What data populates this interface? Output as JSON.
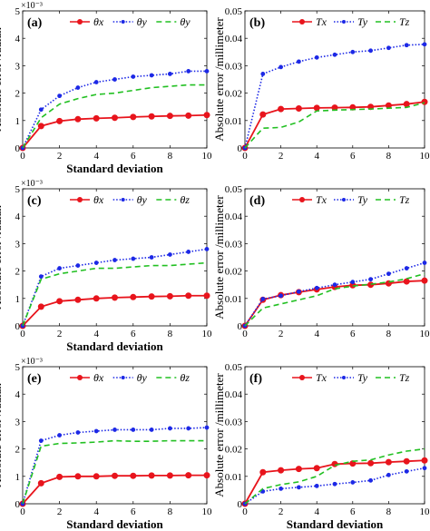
{
  "chart_data": [
    {
      "panel": "(a)",
      "type": "line",
      "xlabel": "Standard deviation",
      "ylabel": "Absolute error /radian",
      "multiplier": "×10⁻³",
      "xlim": [
        0,
        10
      ],
      "ylim": [
        0,
        0.005
      ],
      "xticks": [
        "0",
        "2",
        "4",
        "6",
        "8",
        "10"
      ],
      "yticks": [
        "0",
        "1",
        "2",
        "3",
        "4",
        "5"
      ],
      "x": [
        0,
        1,
        2,
        3,
        4,
        5,
        6,
        7,
        8,
        9,
        10
      ],
      "series": [
        {
          "name": "θx",
          "sub": "x",
          "color": "#e8141c",
          "style": "solid",
          "marker": "circle-large",
          "values": [
            0,
            0.0008,
            0.00098,
            0.00105,
            0.00108,
            0.0011,
            0.00113,
            0.00115,
            0.00117,
            0.00118,
            0.0012
          ]
        },
        {
          "name": "θy",
          "sub": "y",
          "color": "#1c28e6",
          "style": "dotted",
          "marker": "dot",
          "values": [
            0,
            0.0014,
            0.0019,
            0.0022,
            0.0024,
            0.0025,
            0.0026,
            0.00265,
            0.0027,
            0.0028,
            0.0028
          ]
        },
        {
          "name": "θy",
          "sub": "y",
          "color": "#22c022",
          "style": "dashed",
          "marker": "none",
          "values": [
            0,
            0.0011,
            0.0016,
            0.0018,
            0.00195,
            0.002,
            0.0021,
            0.0022,
            0.00225,
            0.0023,
            0.0023
          ]
        }
      ]
    },
    {
      "panel": "(b)",
      "type": "line",
      "xlabel": "",
      "ylabel": "Absolute error /millimeter",
      "multiplier": "",
      "xlim": [
        0,
        10
      ],
      "ylim": [
        0,
        0.05
      ],
      "xticks": [
        "0",
        "2",
        "4",
        "6",
        "8",
        "10"
      ],
      "yticks": [
        "0",
        "0.01",
        "0.02",
        "0.03",
        "0.04",
        "0.05"
      ],
      "x": [
        0,
        1,
        2,
        3,
        4,
        5,
        6,
        7,
        8,
        9,
        10
      ],
      "series": [
        {
          "name": "Tx",
          "sub": "x",
          "color": "#e8141c",
          "style": "solid",
          "marker": "circle-large",
          "values": [
            0,
            0.0122,
            0.0142,
            0.0144,
            0.0146,
            0.0147,
            0.0148,
            0.015,
            0.0155,
            0.016,
            0.0168
          ]
        },
        {
          "name": "Ty",
          "sub": "y",
          "color": "#1c28e6",
          "style": "dotted",
          "marker": "dot",
          "values": [
            0,
            0.027,
            0.0295,
            0.0315,
            0.033,
            0.034,
            0.035,
            0.0355,
            0.0365,
            0.0375,
            0.0378
          ]
        },
        {
          "name": "Tz",
          "sub": "z",
          "color": "#22c022",
          "style": "dashed",
          "marker": "none",
          "values": [
            0,
            0.0072,
            0.0075,
            0.0095,
            0.0135,
            0.0138,
            0.014,
            0.0142,
            0.0145,
            0.0148,
            0.0165
          ]
        }
      ]
    },
    {
      "panel": "(c)",
      "type": "line",
      "xlabel": "Standard deviation",
      "ylabel": "Absolute error /radian",
      "multiplier": "×10⁻³",
      "xlim": [
        0,
        10
      ],
      "ylim": [
        0,
        0.005
      ],
      "xticks": [
        "0",
        "2",
        "4",
        "6",
        "8",
        "10"
      ],
      "yticks": [
        "0",
        "1",
        "2",
        "3",
        "4",
        "5"
      ],
      "x": [
        0,
        1,
        2,
        3,
        4,
        5,
        6,
        7,
        8,
        9,
        10
      ],
      "series": [
        {
          "name": "θx",
          "sub": "x",
          "color": "#e8141c",
          "style": "solid",
          "marker": "circle-large",
          "values": [
            0,
            0.0007,
            0.0009,
            0.00095,
            0.001,
            0.00103,
            0.00105,
            0.00107,
            0.00108,
            0.0011,
            0.0011
          ]
        },
        {
          "name": "θy",
          "sub": "y",
          "color": "#1c28e6",
          "style": "dotted",
          "marker": "dot",
          "values": [
            0,
            0.0018,
            0.0021,
            0.0022,
            0.0023,
            0.0024,
            0.00245,
            0.0025,
            0.0026,
            0.0027,
            0.0028
          ]
        },
        {
          "name": "θz",
          "sub": "z",
          "color": "#22c022",
          "style": "dashed",
          "marker": "none",
          "values": [
            0,
            0.0017,
            0.0019,
            0.002,
            0.0021,
            0.0021,
            0.00215,
            0.0022,
            0.0022,
            0.00225,
            0.0023
          ]
        }
      ]
    },
    {
      "panel": "(d)",
      "type": "line",
      "xlabel": "",
      "ylabel": "Absolute error /millimeter",
      "multiplier": "",
      "xlim": [
        0,
        10
      ],
      "ylim": [
        0,
        0.05
      ],
      "xticks": [
        "0",
        "2",
        "4",
        "6",
        "8",
        "10"
      ],
      "yticks": [
        "0",
        "0.01",
        "0.02",
        "0.03",
        "0.04",
        "0.05"
      ],
      "x": [
        0,
        1,
        2,
        3,
        4,
        5,
        6,
        7,
        8,
        9,
        10
      ],
      "series": [
        {
          "name": "Tx",
          "sub": "x",
          "color": "#e8141c",
          "style": "solid",
          "marker": "circle-large",
          "values": [
            0,
            0.0095,
            0.0112,
            0.0123,
            0.0133,
            0.0142,
            0.0148,
            0.015,
            0.0155,
            0.0162,
            0.0165
          ]
        },
        {
          "name": "Ty",
          "sub": "y",
          "color": "#1c28e6",
          "style": "dotted",
          "marker": "dot",
          "values": [
            0,
            0.0098,
            0.011,
            0.0125,
            0.0138,
            0.015,
            0.016,
            0.017,
            0.019,
            0.021,
            0.023
          ]
        },
        {
          "name": "Tz",
          "sub": "z",
          "color": "#22c022",
          "style": "dashed",
          "marker": "none",
          "values": [
            0,
            0.0065,
            0.008,
            0.0095,
            0.011,
            0.0135,
            0.0145,
            0.0152,
            0.016,
            0.0172,
            0.019
          ]
        }
      ]
    },
    {
      "panel": "(e)",
      "type": "line",
      "xlabel": "Standard deviation",
      "ylabel": "Absolute error /radian",
      "multiplier": "×10⁻³",
      "xlim": [
        0,
        10
      ],
      "ylim": [
        0,
        0.005
      ],
      "xticks": [
        "0",
        "2",
        "4",
        "6",
        "8",
        "10"
      ],
      "yticks": [
        "0",
        "1",
        "2",
        "3",
        "4",
        "5"
      ],
      "x": [
        0,
        1,
        2,
        3,
        4,
        5,
        6,
        7,
        8,
        9,
        10
      ],
      "series": [
        {
          "name": "θx",
          "sub": "x",
          "color": "#e8141c",
          "style": "solid",
          "marker": "circle-large",
          "values": [
            0,
            0.00075,
            0.00098,
            0.001,
            0.001,
            0.00102,
            0.00102,
            0.00103,
            0.00103,
            0.00104,
            0.00104
          ]
        },
        {
          "name": "θy",
          "sub": "y",
          "color": "#1c28e6",
          "style": "dotted",
          "marker": "dot",
          "values": [
            0,
            0.0023,
            0.0025,
            0.0026,
            0.00265,
            0.0027,
            0.0027,
            0.0027,
            0.00275,
            0.00275,
            0.00278
          ]
        },
        {
          "name": "θz",
          "sub": "z",
          "color": "#22c022",
          "style": "dashed",
          "marker": "none",
          "values": [
            0,
            0.0021,
            0.0022,
            0.00222,
            0.00225,
            0.0023,
            0.00228,
            0.00228,
            0.0023,
            0.0023,
            0.0023
          ]
        }
      ]
    },
    {
      "panel": "(f)",
      "type": "line",
      "xlabel": "Standard deviation",
      "ylabel": "Absolute error /millimeter",
      "multiplier": "",
      "xlim": [
        0,
        10
      ],
      "ylim": [
        0,
        0.05
      ],
      "xticks": [
        "0",
        "2",
        "4",
        "6",
        "8",
        "10"
      ],
      "yticks": [
        "0",
        "0.01",
        "0.02",
        "0.03",
        "0.04",
        "0.05"
      ],
      "x": [
        0,
        1,
        2,
        3,
        4,
        5,
        6,
        7,
        8,
        9,
        10
      ],
      "series": [
        {
          "name": "Tx",
          "sub": "x",
          "color": "#e8141c",
          "style": "solid",
          "marker": "circle-large",
          "values": [
            0,
            0.0115,
            0.0122,
            0.0127,
            0.013,
            0.0145,
            0.0147,
            0.0148,
            0.0152,
            0.0155,
            0.0158
          ]
        },
        {
          "name": "Ty",
          "sub": "y",
          "color": "#1c28e6",
          "style": "dotted",
          "marker": "dot",
          "values": [
            0,
            0.0045,
            0.0055,
            0.006,
            0.0065,
            0.0072,
            0.0078,
            0.0085,
            0.0105,
            0.0118,
            0.013
          ]
        },
        {
          "name": "Tz",
          "sub": "z",
          "color": "#22c022",
          "style": "dashed",
          "marker": "none",
          "values": [
            0,
            0.0055,
            0.007,
            0.008,
            0.01,
            0.014,
            0.0155,
            0.016,
            0.0178,
            0.0192,
            0.02
          ]
        }
      ]
    }
  ]
}
